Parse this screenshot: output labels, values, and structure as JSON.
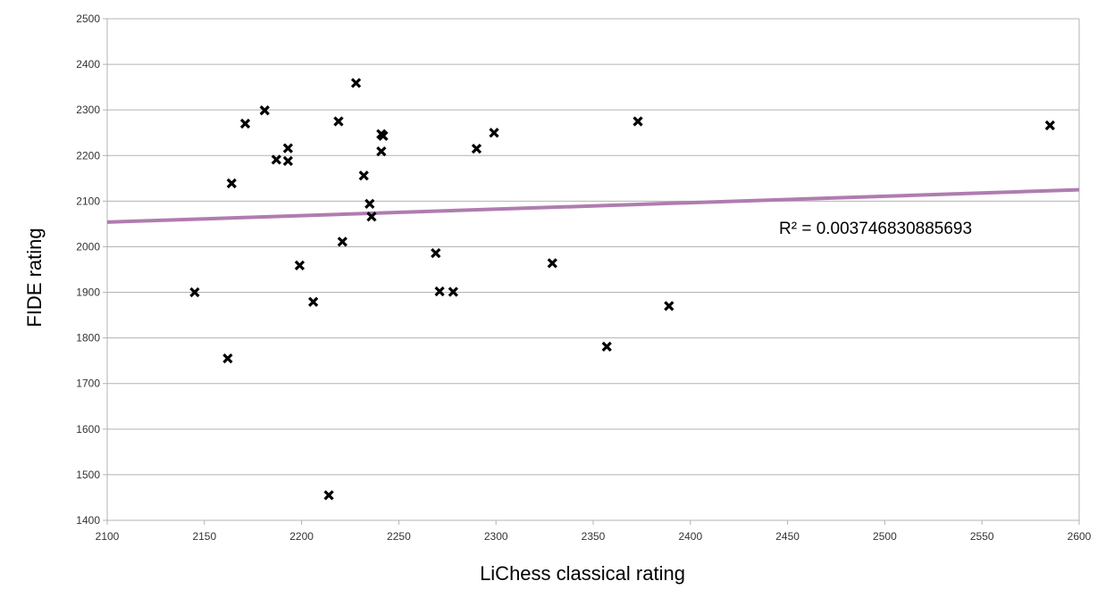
{
  "chart_data": {
    "type": "scatter",
    "xlabel": "LiChess classical rating",
    "ylabel": "FIDE rating",
    "xlim": [
      2100,
      2600
    ],
    "ylim": [
      1400,
      2500
    ],
    "xticks": [
      2100,
      2150,
      2200,
      2250,
      2300,
      2350,
      2400,
      2450,
      2500,
      2550,
      2600
    ],
    "yticks": [
      1400,
      1500,
      1600,
      1700,
      1800,
      1900,
      2000,
      2100,
      2200,
      2300,
      2400,
      2500
    ],
    "grid": "horizontal",
    "legend": "none",
    "marker": "x",
    "colors": {
      "points": "#000000",
      "trendline": "#b07cb0",
      "grid": "#b3b3b3"
    },
    "points": [
      {
        "x": 2145,
        "y": 1900
      },
      {
        "x": 2162,
        "y": 1755
      },
      {
        "x": 2164,
        "y": 2139
      },
      {
        "x": 2171,
        "y": 2270
      },
      {
        "x": 2181,
        "y": 2299
      },
      {
        "x": 2187,
        "y": 2191
      },
      {
        "x": 2193,
        "y": 2216
      },
      {
        "x": 2193,
        "y": 2188
      },
      {
        "x": 2199,
        "y": 1959
      },
      {
        "x": 2206,
        "y": 1879
      },
      {
        "x": 2214,
        "y": 1455
      },
      {
        "x": 2219,
        "y": 2275
      },
      {
        "x": 2221,
        "y": 2011
      },
      {
        "x": 2228,
        "y": 2359
      },
      {
        "x": 2232,
        "y": 2156
      },
      {
        "x": 2235,
        "y": 2094
      },
      {
        "x": 2236,
        "y": 2066
      },
      {
        "x": 2241,
        "y": 2247
      },
      {
        "x": 2242,
        "y": 2243
      },
      {
        "x": 2241,
        "y": 2209
      },
      {
        "x": 2269,
        "y": 1986
      },
      {
        "x": 2271,
        "y": 1902
      },
      {
        "x": 2278,
        "y": 1901
      },
      {
        "x": 2290,
        "y": 2215
      },
      {
        "x": 2299,
        "y": 2250
      },
      {
        "x": 2329,
        "y": 1964
      },
      {
        "x": 2357,
        "y": 1781
      },
      {
        "x": 2373,
        "y": 2275
      },
      {
        "x": 2389,
        "y": 1870
      },
      {
        "x": 2585,
        "y": 2266
      }
    ],
    "trendline": {
      "type": "linear",
      "y_at_xmin": 2054,
      "y_at_xmax": 2125
    },
    "annotations": [
      "R² = 0.003746830885693"
    ]
  }
}
